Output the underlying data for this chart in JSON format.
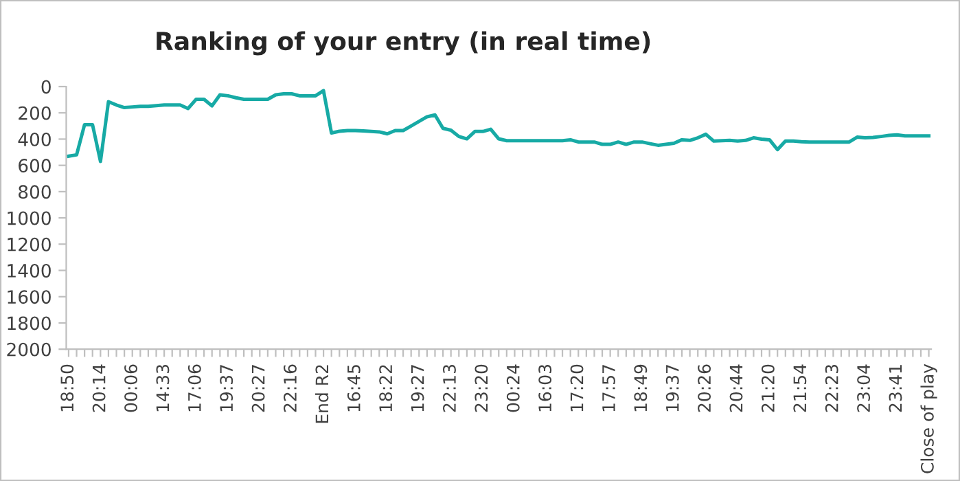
{
  "chart_data": {
    "type": "line",
    "title": "Ranking of your entry (in real time)",
    "categories": [
      "18:50",
      null,
      null,
      null,
      "20:14",
      null,
      null,
      null,
      "00:06",
      null,
      null,
      null,
      "14:33",
      null,
      null,
      null,
      "17:06",
      null,
      null,
      null,
      "19:37",
      null,
      null,
      null,
      "20:27",
      null,
      null,
      null,
      "22:16",
      null,
      null,
      null,
      "End R2",
      null,
      null,
      null,
      "16:45",
      null,
      null,
      null,
      "18:22",
      null,
      null,
      null,
      "19:27",
      null,
      null,
      null,
      "22:13",
      null,
      null,
      null,
      "23:20",
      null,
      null,
      null,
      "00:24",
      null,
      null,
      null,
      "16:03",
      null,
      null,
      null,
      "17:20",
      null,
      null,
      null,
      "17:57",
      null,
      null,
      null,
      "18:49",
      null,
      null,
      null,
      "19:37",
      null,
      null,
      null,
      "20:26",
      null,
      null,
      null,
      "20:44",
      null,
      null,
      null,
      "21:20",
      null,
      null,
      null,
      "21:54",
      null,
      null,
      null,
      "22:23",
      null,
      null,
      null,
      "23:04",
      null,
      null,
      null,
      "23:41",
      null,
      null,
      null,
      "Close of play"
    ],
    "series": [
      {
        "color": "#17aaa5",
        "values": [
          530,
          520,
          290,
          290,
          570,
          115,
          140,
          160,
          155,
          150,
          150,
          145,
          140,
          140,
          140,
          167,
          97,
          97,
          147,
          63,
          70,
          85,
          97,
          97,
          97,
          97,
          63,
          55,
          55,
          70,
          70,
          70,
          31,
          353,
          340,
          335,
          335,
          338,
          342,
          345,
          360,
          335,
          335,
          300,
          265,
          230,
          216,
          318,
          332,
          380,
          398,
          342,
          342,
          325,
          398,
          412,
          412,
          412,
          412,
          412,
          412,
          412,
          412,
          405,
          422,
          422,
          422,
          440,
          440,
          422,
          440,
          422,
          422,
          435,
          447,
          440,
          432,
          405,
          410,
          390,
          363,
          415,
          412,
          410,
          415,
          410,
          390,
          400,
          405,
          480,
          415,
          415,
          420,
          422,
          422,
          422,
          422,
          422,
          422,
          385,
          390,
          387,
          380,
          372,
          368,
          375,
          375,
          375,
          375
        ]
      }
    ],
    "ylim": [
      2000,
      0
    ],
    "yticks": [
      0,
      200,
      400,
      600,
      800,
      1000,
      1200,
      1400,
      1600,
      1800,
      2000
    ],
    "grid": false,
    "legend": false,
    "marker": "none",
    "line_style": "solid"
  }
}
